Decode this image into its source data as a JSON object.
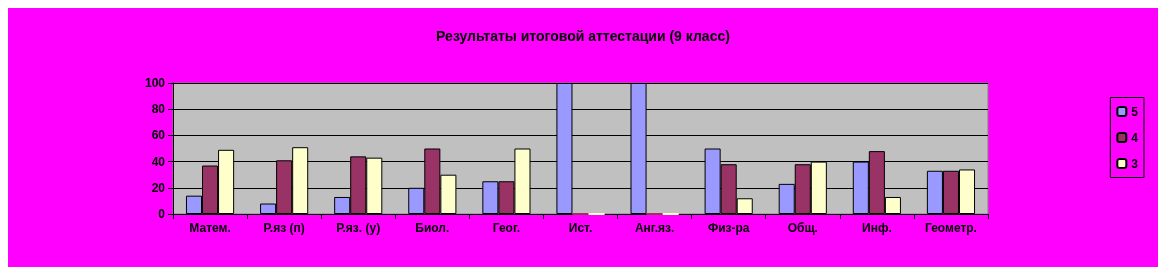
{
  "chart_data": {
    "type": "bar",
    "title": "Результаты итоговой аттестации (9 класс)",
    "categories": [
      "Матем.",
      "Р.яз (п)",
      "Р.яз. (у)",
      "Биол.",
      "Геог.",
      "Ист.",
      "Анг.яз.",
      "Физ-ра",
      "Общ.",
      "Инф.",
      "Геометр."
    ],
    "series": [
      {
        "name": "5",
        "color": "#9999ff",
        "values": [
          14,
          8,
          13,
          20,
          25,
          100,
          100,
          50,
          23,
          40,
          33
        ]
      },
      {
        "name": "4",
        "color": "#993366",
        "values": [
          37,
          41,
          44,
          50,
          25,
          0,
          0,
          38,
          38,
          48,
          33
        ]
      },
      {
        "name": "3",
        "color": "#ffffcc",
        "values": [
          49,
          51,
          43,
          30,
          50,
          0,
          0,
          12,
          40,
          13,
          34
        ]
      }
    ],
    "ylim": [
      0,
      100
    ],
    "yticks": [
      0,
      20,
      40,
      60,
      80,
      100
    ],
    "grid": "y",
    "legend": "right"
  }
}
